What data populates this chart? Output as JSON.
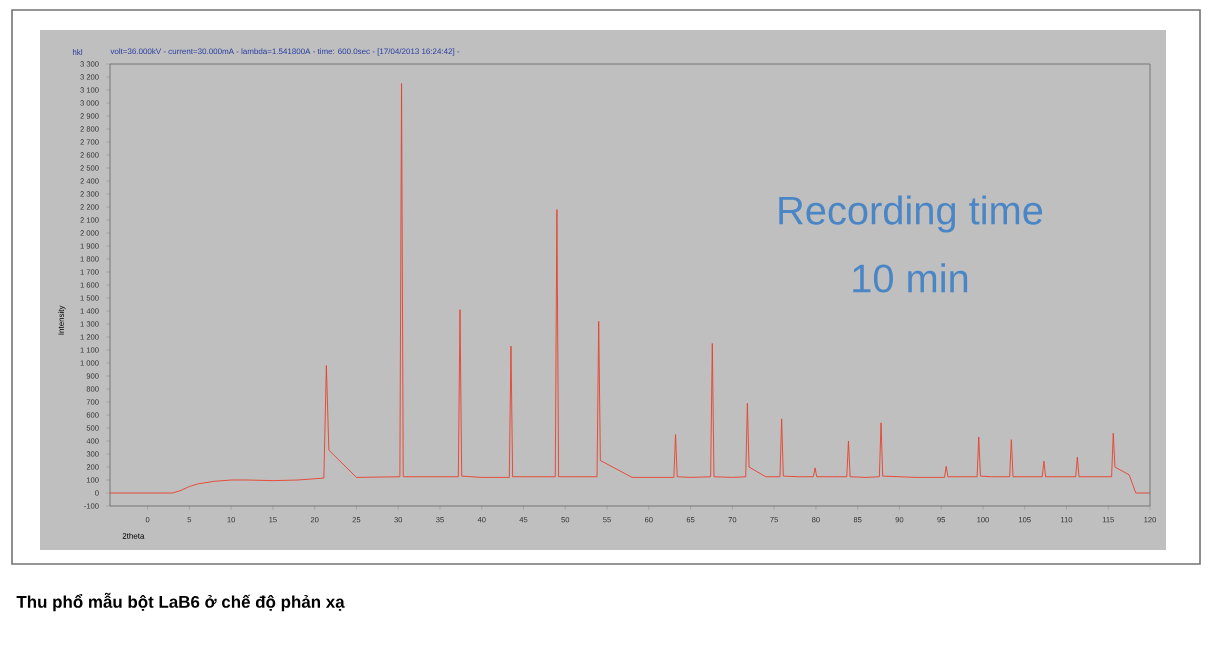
{
  "chart_data": {
    "type": "line",
    "title": "Thu phổ mẫu bột LaB6 ở chế độ phản xạ",
    "subtitle": "volt=36.000kV - current=30.000mA - lambda=1.541800A - time: 600.0sec - [17/04/2013 16:24:42] -",
    "xlabel": "2theta",
    "ylabel": "Intensity",
    "annotations": [
      "hkl",
      "Recording time",
      "10 min"
    ],
    "xlim": [
      -4.5,
      120
    ],
    "ylim": [
      -100,
      3300
    ],
    "xticks": [
      0,
      5,
      10,
      15,
      20,
      25,
      30,
      35,
      40,
      45,
      50,
      55,
      60,
      65,
      70,
      75,
      80,
      85,
      90,
      95,
      100,
      105,
      110,
      115,
      120
    ],
    "yticks": [
      -100,
      0,
      100,
      200,
      300,
      400,
      500,
      600,
      700,
      800,
      900,
      {
        "value": 1000,
        "label": "1 000"
      },
      {
        "value": 1100,
        "label": "1 100"
      },
      {
        "value": 1200,
        "label": "1 200"
      },
      {
        "value": 1300,
        "label": "1 300"
      },
      {
        "value": 1400,
        "label": "1 400"
      },
      {
        "value": 1500,
        "label": "1 500"
      },
      {
        "value": 1600,
        "label": "1 600"
      },
      {
        "value": 1700,
        "label": "1 700"
      },
      {
        "value": 1800,
        "label": "1 800"
      },
      {
        "value": 1900,
        "label": "1 900"
      },
      {
        "value": 2000,
        "label": "2 000"
      },
      {
        "value": 2100,
        "label": "2 100"
      },
      {
        "value": 2200,
        "label": "2 200"
      },
      {
        "value": 2300,
        "label": "2 300"
      },
      {
        "value": 2400,
        "label": "2 400"
      },
      {
        "value": 2500,
        "label": "2 500"
      },
      {
        "value": 2600,
        "label": "2 600"
      },
      {
        "value": 2700,
        "label": "2 700"
      },
      {
        "value": 2800,
        "label": "2 800"
      },
      {
        "value": 2900,
        "label": "2 900"
      },
      {
        "value": 3000,
        "label": "3 000"
      },
      {
        "value": 3100,
        "label": "3 100"
      },
      {
        "value": 3200,
        "label": "3 200"
      },
      {
        "value": 3300,
        "label": "3 300"
      }
    ],
    "marker": "none",
    "line_style": "solid",
    "series": [
      {
        "color": "#e8402c",
        "x": [
          -4.5,
          3,
          4,
          5,
          6,
          8,
          10,
          12,
          15,
          18,
          21.1,
          21.4,
          21.7,
          25,
          30.2,
          30.4,
          30.6,
          34,
          37.2,
          37.4,
          37.6,
          40,
          43.3,
          43.5,
          43.7,
          46,
          48.8,
          49.0,
          49.2,
          51,
          53.8,
          54.0,
          54.2,
          58,
          63.0,
          63.2,
          63.4,
          65,
          67.4,
          67.6,
          67.8,
          70,
          71.6,
          71.8,
          72.0,
          74,
          75.7,
          75.9,
          76.1,
          78,
          79.7,
          79.9,
          80.1,
          82,
          83.7,
          83.9,
          84.1,
          86,
          87.6,
          87.8,
          88.0,
          92,
          95.4,
          95.6,
          95.8,
          98,
          99.3,
          99.5,
          99.7,
          101,
          103.2,
          103.4,
          103.6,
          105,
          107.1,
          107.3,
          107.5,
          109,
          111.1,
          111.3,
          111.5,
          113,
          115.4,
          115.6,
          115.8,
          117.5,
          118.3,
          120
        ],
        "values": [
          0,
          0,
          20,
          50,
          70,
          90,
          100,
          100,
          95,
          100,
          115,
          980,
          330,
          120,
          125,
          3150,
          125,
          125,
          125,
          1410,
          130,
          120,
          120,
          1130,
          125,
          125,
          125,
          2180,
          125,
          125,
          125,
          1320,
          250,
          120,
          120,
          450,
          125,
          120,
          125,
          1150,
          125,
          120,
          125,
          690,
          200,
          125,
          125,
          570,
          130,
          125,
          125,
          193,
          125,
          125,
          125,
          400,
          125,
          120,
          125,
          540,
          130,
          120,
          120,
          205,
          125,
          125,
          125,
          430,
          130,
          125,
          125,
          410,
          125,
          125,
          125,
          245,
          125,
          125,
          125,
          275,
          125,
          125,
          125,
          460,
          200,
          140,
          0,
          0
        ]
      }
    ]
  }
}
